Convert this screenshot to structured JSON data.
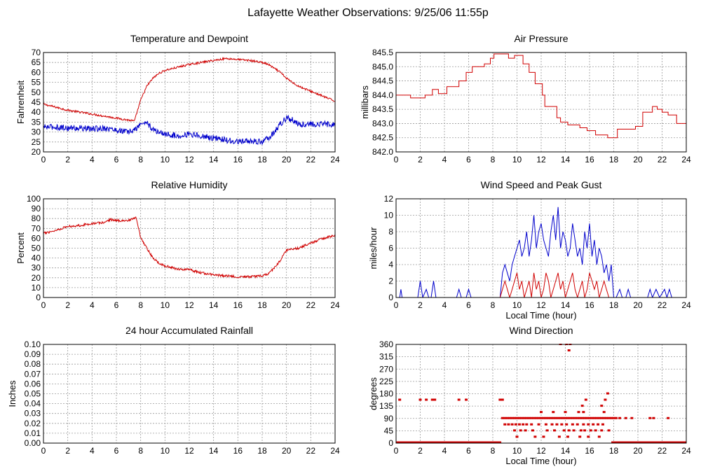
{
  "page": {
    "title": "Lafayette Weather Observations: 9/25/06 11:55p"
  },
  "colors": {
    "red": "#d00000",
    "blue": "#0000cc",
    "grid": "#9a9a9a",
    "axis": "#000000"
  },
  "chart_data": [
    {
      "id": "temp",
      "type": "line",
      "title": "Temperature and Dewpoint",
      "xlabel": "",
      "ylabel": "Fahrenheit",
      "xlim": [
        0,
        24
      ],
      "xticks": [
        0,
        2,
        4,
        6,
        8,
        10,
        12,
        14,
        16,
        18,
        20,
        22,
        24
      ],
      "ylim": [
        20,
        70
      ],
      "yticks": [
        "20",
        "25",
        "30",
        "35",
        "40",
        "45",
        "50",
        "55",
        "60",
        "65",
        "70"
      ],
      "grid": true,
      "series": [
        {
          "color": "red",
          "x": [
            0,
            1,
            2,
            3,
            4,
            5,
            6,
            7,
            7.5,
            7.7,
            8,
            8.5,
            9,
            9.5,
            10,
            11,
            12,
            13,
            14,
            15,
            16,
            17,
            18,
            18.5,
            19,
            19.5,
            20,
            21,
            22,
            23,
            24
          ],
          "y": [
            44,
            42.5,
            41,
            40,
            39,
            38,
            37,
            36,
            35.5,
            40,
            46,
            53,
            57,
            59.5,
            61,
            62.5,
            64,
            65,
            66,
            67,
            66.5,
            66,
            65,
            64,
            62,
            60,
            57,
            53,
            50.5,
            48,
            45.5
          ],
          "noise": 0.5
        },
        {
          "color": "blue",
          "x": [
            0,
            1,
            2,
            3,
            4,
            5,
            6,
            7,
            7.5,
            8,
            8.5,
            9,
            9.5,
            10,
            11,
            12,
            13,
            14,
            15,
            16,
            17,
            18,
            18.5,
            19,
            19.5,
            20,
            20.5,
            21,
            22,
            23,
            24
          ],
          "y": [
            32.5,
            32.5,
            32,
            32,
            31.5,
            32,
            31,
            30,
            31,
            34,
            35,
            31,
            30,
            29,
            28,
            29,
            28,
            27,
            26,
            25,
            25.5,
            25,
            27,
            30,
            34,
            37,
            36,
            34,
            34,
            34,
            34
          ],
          "noise": 1.5
        }
      ]
    },
    {
      "id": "pressure",
      "type": "line",
      "title": "Air Pressure",
      "xlabel": "",
      "ylabel": "millibars",
      "xlim": [
        0,
        24
      ],
      "xticks": [
        0,
        2,
        4,
        6,
        8,
        10,
        12,
        14,
        16,
        18,
        20,
        22,
        24
      ],
      "ylim": [
        842.0,
        845.5
      ],
      "yticks": [
        "842.0",
        "842.5",
        "843.0",
        "843.5",
        "844.0",
        "844.5",
        "845.0",
        "845.5"
      ],
      "grid": true,
      "step": true,
      "series": [
        {
          "color": "red",
          "x": [
            0,
            1.2,
            2.4,
            3,
            3.5,
            4.2,
            5.2,
            5.8,
            6.3,
            7.3,
            7.8,
            8.1,
            9.3,
            9.8,
            10.5,
            11,
            11.5,
            12.1,
            12.3,
            13.3,
            13.6,
            14.2,
            15.2,
            15.8,
            16.5,
            17.5,
            18.3,
            19,
            19.8,
            20.4,
            21.2,
            21.6,
            22,
            22.5,
            23.2,
            24
          ],
          "y": [
            844.0,
            843.9,
            844.0,
            844.2,
            844.05,
            844.3,
            844.5,
            844.8,
            845.0,
            845.1,
            845.3,
            845.45,
            845.3,
            845.4,
            845.1,
            844.8,
            844.4,
            844.0,
            843.6,
            843.2,
            843.05,
            842.95,
            842.85,
            842.75,
            842.6,
            842.5,
            842.8,
            842.8,
            842.9,
            843.4,
            843.6,
            843.5,
            843.4,
            843.3,
            843.0,
            842.9
          ],
          "noise": 0
        }
      ]
    },
    {
      "id": "humidity",
      "type": "line",
      "title": "Relative Humidity",
      "xlabel": "",
      "ylabel": "Percent",
      "xlim": [
        0,
        24
      ],
      "xticks": [
        0,
        2,
        4,
        6,
        8,
        10,
        12,
        14,
        16,
        18,
        20,
        22,
        24
      ],
      "ylim": [
        0,
        100
      ],
      "yticks": [
        "0",
        "10",
        "20",
        "30",
        "40",
        "50",
        "60",
        "70",
        "80",
        "90",
        "100"
      ],
      "grid": true,
      "series": [
        {
          "color": "red",
          "x": [
            0,
            1,
            2,
            3,
            4,
            5,
            5.5,
            6,
            7,
            7.5,
            7.6,
            8,
            8.5,
            9,
            9.5,
            10,
            11,
            12,
            13,
            14,
            15,
            16,
            17,
            18,
            18.5,
            19,
            19.5,
            20,
            21,
            22,
            23,
            24
          ],
          "y": [
            65,
            68,
            72,
            73,
            75,
            76,
            79,
            78,
            78,
            80,
            82,
            60,
            50,
            40,
            35,
            32,
            29,
            28,
            25,
            23,
            22,
            21,
            21,
            22,
            24,
            30,
            38,
            48,
            50,
            55,
            60,
            63
          ],
          "noise": 1.2
        }
      ]
    },
    {
      "id": "wind",
      "type": "line",
      "title": "Wind Speed and Peak Gust",
      "xlabel": "Local Time (hour)",
      "ylabel": "miles/hour",
      "xlim": [
        0,
        24
      ],
      "xticks": [
        0,
        2,
        4,
        6,
        8,
        10,
        12,
        14,
        16,
        18,
        20,
        22,
        24
      ],
      "ylim": [
        0,
        12
      ],
      "yticks": [
        "0",
        "2",
        "4",
        "6",
        "8",
        "10",
        "12"
      ],
      "grid": true,
      "series": [
        {
          "color": "blue",
          "x": [
            0,
            0.3,
            0.4,
            0.5,
            1.8,
            2.0,
            2.2,
            2.5,
            2.7,
            2.9,
            3.1,
            3.3,
            3.5,
            5.0,
            5.2,
            5.4,
            5.8,
            6.0,
            6.2,
            8.6,
            8.8,
            9.0,
            9.2,
            9.4,
            9.6,
            9.8,
            10.0,
            10.2,
            10.4,
            10.6,
            10.8,
            11.0,
            11.2,
            11.4,
            11.6,
            11.8,
            12.0,
            12.2,
            12.4,
            12.6,
            12.8,
            13.0,
            13.2,
            13.4,
            13.6,
            13.8,
            14.0,
            14.2,
            14.4,
            14.6,
            14.8,
            15.0,
            15.2,
            15.4,
            15.6,
            15.8,
            16.0,
            16.2,
            16.4,
            16.6,
            16.8,
            17.0,
            17.2,
            17.4,
            17.6,
            17.8,
            18.0,
            18.2,
            18.5,
            18.7,
            19.0,
            19.2,
            19.4,
            20.8,
            21.0,
            21.2,
            21.5,
            21.8,
            22.2,
            22.4,
            22.6,
            22.8,
            24
          ],
          "y": [
            0,
            0,
            1,
            0,
            0,
            2,
            0,
            1,
            0,
            0,
            2,
            0,
            0,
            0,
            1,
            0,
            0,
            1,
            0,
            0,
            3,
            4,
            3,
            2,
            4,
            5,
            6,
            7,
            5,
            6,
            8,
            5,
            7,
            10,
            6,
            8,
            9,
            7,
            6,
            5,
            8,
            10,
            7,
            11,
            6,
            8,
            7,
            5,
            6,
            9,
            7,
            5,
            6,
            4,
            8,
            6,
            9,
            5,
            7,
            4,
            6,
            5,
            3,
            4,
            2,
            4,
            0,
            0,
            1,
            0,
            0,
            1,
            0,
            0,
            1,
            0,
            1,
            0,
            1,
            0,
            1,
            0,
            0
          ],
          "noise": 0
        },
        {
          "color": "red",
          "x": [
            0,
            8.6,
            8.8,
            9.0,
            9.2,
            9.4,
            9.6,
            9.8,
            10.0,
            10.2,
            10.4,
            10.6,
            10.8,
            11.0,
            11.2,
            11.4,
            11.6,
            11.8,
            12.0,
            12.2,
            12.4,
            12.6,
            12.8,
            13.0,
            13.2,
            13.4,
            13.6,
            13.8,
            14.0,
            14.2,
            14.4,
            14.6,
            14.8,
            15.0,
            15.2,
            15.4,
            15.6,
            15.8,
            16.0,
            16.2,
            16.4,
            16.6,
            16.8,
            17.0,
            17.2,
            17.4,
            17.6,
            17.8,
            24
          ],
          "y": [
            0,
            0,
            1,
            2,
            1,
            0,
            1,
            2,
            3,
            1,
            2,
            0,
            1,
            2,
            0,
            3,
            1,
            2,
            0,
            1,
            3,
            2,
            0,
            1,
            2,
            3,
            1,
            2,
            0,
            1,
            2,
            3,
            1,
            0,
            1,
            2,
            0,
            1,
            3,
            2,
            1,
            2,
            0,
            1,
            2,
            1,
            0,
            0,
            0
          ],
          "noise": 0
        }
      ]
    },
    {
      "id": "rain",
      "type": "line",
      "title": "24 hour Accumulated Rainfall",
      "xlabel": "",
      "ylabel": "Inches",
      "xlim": [
        0,
        24
      ],
      "xticks": [
        0,
        2,
        4,
        6,
        8,
        10,
        12,
        14,
        16,
        18,
        20,
        22,
        24
      ],
      "ylim": [
        0,
        0.1
      ],
      "yticks": [
        "0.00",
        "0.01",
        "0.02",
        "0.03",
        "0.04",
        "0.05",
        "0.06",
        "0.07",
        "0.08",
        "0.09",
        "0.10"
      ],
      "grid": true,
      "series": [
        {
          "color": "red",
          "x": [
            0,
            24
          ],
          "y": [
            0,
            0
          ],
          "noise": 0
        }
      ]
    },
    {
      "id": "winddir",
      "type": "scatter",
      "title": "Wind Direction",
      "xlabel": "Local Time (hour)",
      "ylabel": "degrees",
      "xlim": [
        0,
        24
      ],
      "xticks": [
        0,
        2,
        4,
        6,
        8,
        10,
        12,
        14,
        16,
        18,
        20,
        22,
        24
      ],
      "ylim": [
        0,
        360
      ],
      "yticks": [
        "0",
        "45",
        "90",
        "135",
        "180",
        "225",
        "270",
        "315",
        "360"
      ],
      "grid": true,
      "baseline": {
        "value": 0,
        "color": "red",
        "ranges": [
          [
            0,
            8.7
          ],
          [
            17.8,
            24
          ]
        ]
      },
      "points": {
        "color": "red",
        "x": [
          0.3,
          2.0,
          2.5,
          3.0,
          3.2,
          5.2,
          5.8,
          8.6,
          8.8,
          8.8,
          9.0,
          9.2,
          9.4,
          9.6,
          9.8,
          10.0,
          10.2,
          10.4,
          10.6,
          10.8,
          11.0,
          11.2,
          11.4,
          11.6,
          11.8,
          12.0,
          12.2,
          12.4,
          12.6,
          12.8,
          13.0,
          13.2,
          13.4,
          13.6,
          13.8,
          14.0,
          14.2,
          14.4,
          14.6,
          14.8,
          15.0,
          15.2,
          15.4,
          15.6,
          15.8,
          16.0,
          16.2,
          16.4,
          16.6,
          16.8,
          17.0,
          17.2,
          17.4,
          17.6,
          17.8,
          18.0,
          18.2,
          18.5,
          19.0,
          19.5,
          21.0,
          21.3,
          22.5,
          9.0,
          9.3,
          9.6,
          9.9,
          10.2,
          10.5,
          10.8,
          11.2,
          11.8,
          12.4,
          12.9,
          13.3,
          13.7,
          14.1,
          14.6,
          15.0,
          15.5,
          15.9,
          16.3,
          16.7,
          17.1,
          9.8,
          10.3,
          10.7,
          11.3,
          12.5,
          13.1,
          13.9,
          14.3,
          14.7,
          15.3,
          15.6,
          16.1,
          16.5,
          17.0,
          17.6,
          10.0,
          11.5,
          12.2,
          13.5,
          14.2,
          15.2,
          15.9,
          16.8,
          12.0,
          13.0,
          14.0,
          15.1,
          15.5,
          17.2,
          15.4,
          15.7,
          17.0,
          17.3,
          17.5,
          13.6,
          14.1,
          14.3,
          14.4
        ],
        "y": [
          157,
          157,
          157,
          157,
          157,
          157,
          157,
          157,
          157,
          90,
          90,
          90,
          90,
          90,
          90,
          90,
          90,
          90,
          90,
          90,
          90,
          90,
          90,
          90,
          90,
          90,
          90,
          90,
          90,
          90,
          90,
          90,
          90,
          90,
          90,
          90,
          90,
          90,
          90,
          90,
          90,
          90,
          90,
          90,
          90,
          90,
          90,
          90,
          90,
          90,
          90,
          90,
          90,
          90,
          90,
          90,
          90,
          90,
          90,
          90,
          90,
          90,
          90,
          67,
          67,
          67,
          67,
          67,
          67,
          67,
          67,
          67,
          67,
          67,
          67,
          67,
          67,
          67,
          67,
          67,
          67,
          67,
          67,
          67,
          45,
          45,
          45,
          45,
          45,
          45,
          45,
          45,
          45,
          45,
          45,
          45,
          45,
          45,
          45,
          22,
          22,
          22,
          22,
          22,
          22,
          22,
          22,
          112,
          112,
          112,
          112,
          112,
          112,
          135,
          157,
          135,
          157,
          180,
          360,
          360,
          337,
          360
        ]
      }
    }
  ]
}
